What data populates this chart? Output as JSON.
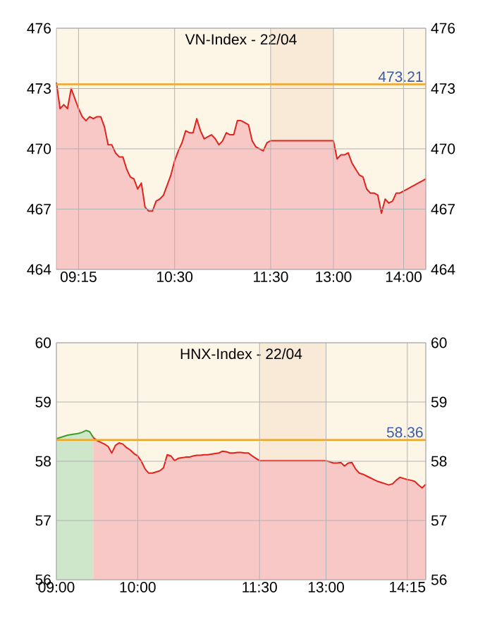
{
  "chart_data": [
    {
      "type": "area",
      "title": "VN-Index - 22/04",
      "ylim": [
        464,
        476
      ],
      "yticks": [
        464,
        467,
        470,
        473,
        476
      ],
      "y2lim": [
        464,
        476
      ],
      "y2ticks": [
        464,
        467,
        470,
        473,
        476
      ],
      "grid": true,
      "categories": [
        null,
        null,
        null,
        null,
        null,
        null,
        "09:15",
        null,
        null,
        null,
        null,
        null,
        null,
        null,
        null,
        null,
        null,
        null,
        null,
        null,
        null,
        null,
        null,
        null,
        null,
        null,
        null,
        null,
        null,
        null,
        null,
        null,
        "10:30",
        null,
        null,
        null,
        null,
        null,
        null,
        null,
        null,
        null,
        null,
        null,
        null,
        null,
        null,
        null,
        null,
        null,
        null,
        null,
        null,
        null,
        null,
        null,
        null,
        null,
        "11:30",
        null,
        null,
        null,
        null,
        null,
        null,
        null,
        null,
        null,
        null,
        null,
        null,
        null,
        null,
        null,
        null,
        "13:00",
        null,
        null,
        null,
        null,
        null,
        null,
        null,
        null,
        null,
        null,
        null,
        null,
        null,
        null,
        null,
        null,
        null,
        null,
        "14:00",
        null,
        null,
        null,
        null,
        null,
        null
      ],
      "bands": [
        {
          "axis": "x",
          "from": "11:30",
          "to": "13:00",
          "color": "#f9ead8"
        }
      ],
      "ref_lines": [
        {
          "axis": "y",
          "value": 473.21,
          "label": "473.21",
          "color": "#f3a51f"
        }
      ],
      "series": [
        {
          "color": "#e0231d",
          "values": [
            473.3,
            472.0,
            472.2,
            472.0,
            473.0,
            472.5,
            472.0,
            471.6,
            471.4,
            471.6,
            471.5,
            471.6,
            471.6,
            471.1,
            470.2,
            470.2,
            469.8,
            469.6,
            469.6,
            469.0,
            468.6,
            468.5,
            468.0,
            468.3,
            467.1,
            466.9,
            466.9,
            467.4,
            467.5,
            467.7,
            468.2,
            468.7,
            469.4,
            469.9,
            470.3,
            470.9,
            470.8,
            470.8,
            471.5,
            470.9,
            470.5,
            470.6,
            470.7,
            470.5,
            470.2,
            470.4,
            470.8,
            470.7,
            470.7,
            471.4,
            471.4,
            471.3,
            471.2,
            470.4,
            470.1,
            470.0,
            469.9,
            470.3,
            470.4,
            470.4,
            470.4,
            470.4,
            470.4,
            470.4,
            470.4,
            470.4,
            470.4,
            470.4,
            470.4,
            470.4,
            470.4,
            470.4,
            470.4,
            470.4,
            470.4,
            470.4,
            469.5,
            469.7,
            469.7,
            469.8,
            469.3,
            469.0,
            468.7,
            468.6,
            468.0,
            467.8,
            467.8,
            467.7,
            466.8,
            467.5,
            467.3,
            467.4,
            467.8,
            467.8,
            467.9,
            468.0,
            468.1,
            468.2,
            468.3,
            468.4,
            468.5
          ]
        }
      ]
    },
    {
      "type": "area",
      "title": "HNX-Index - 22/04",
      "ylim": [
        56,
        60
      ],
      "yticks": [
        56,
        57,
        58,
        59,
        60
      ],
      "y2lim": [
        56,
        60
      ],
      "y2ticks": [
        56,
        57,
        58,
        59,
        60
      ],
      "grid": true,
      "categories": [
        "09:00",
        null,
        null,
        null,
        null,
        null,
        null,
        null,
        null,
        null,
        null,
        null,
        null,
        null,
        null,
        null,
        null,
        null,
        null,
        null,
        null,
        null,
        "10:00",
        null,
        null,
        null,
        null,
        null,
        null,
        null,
        null,
        null,
        null,
        null,
        null,
        null,
        null,
        null,
        null,
        null,
        null,
        null,
        null,
        null,
        null,
        null,
        null,
        null,
        null,
        null,
        null,
        null,
        null,
        null,
        null,
        "11:30",
        null,
        null,
        null,
        null,
        null,
        null,
        null,
        null,
        null,
        null,
        null,
        null,
        null,
        null,
        null,
        null,
        null,
        "13:00",
        null,
        null,
        null,
        null,
        null,
        null,
        null,
        null,
        null,
        null,
        null,
        null,
        null,
        null,
        null,
        null,
        null,
        null,
        null,
        null,
        null,
        "14:15",
        null,
        null,
        null,
        null,
        null
      ],
      "bands": [
        {
          "axis": "x",
          "from": "11:30",
          "to": "13:00",
          "color": "#f9ead8"
        }
      ],
      "ref_lines": [
        {
          "axis": "y",
          "value": 58.36,
          "label": "58.36",
          "color": "#f3a51f"
        }
      ],
      "series": [
        {
          "color": "#3c9e2a",
          "values": [
            58.38,
            58.4,
            58.42,
            58.44,
            58.45,
            58.46,
            58.47,
            58.49,
            58.52,
            58.5,
            58.4,
            null,
            null,
            null,
            null,
            null,
            null,
            null,
            null,
            null,
            null,
            null,
            null,
            null,
            null,
            null,
            null,
            null,
            null,
            null,
            null,
            null,
            null,
            null,
            null,
            null,
            null,
            null,
            null,
            null,
            null,
            null,
            null,
            null,
            null,
            null,
            null,
            null,
            null,
            null,
            null,
            null,
            null,
            null,
            null,
            null,
            null,
            null,
            null,
            null,
            null,
            null,
            null,
            null,
            null,
            null,
            null,
            null,
            null,
            null,
            null,
            null,
            null,
            null,
            null,
            null,
            null,
            null,
            null,
            null,
            null,
            null,
            null,
            null,
            null,
            null,
            null,
            null,
            null,
            null,
            null,
            null,
            null,
            null,
            null,
            null,
            null,
            null,
            null,
            null,
            null
          ]
        },
        {
          "color": "#e0231d",
          "values": [
            null,
            null,
            null,
            null,
            null,
            null,
            null,
            null,
            null,
            null,
            58.4,
            58.35,
            58.32,
            58.29,
            58.25,
            58.14,
            58.27,
            58.31,
            58.29,
            58.23,
            58.19,
            58.13,
            58.09,
            58.0,
            57.87,
            57.8,
            57.8,
            57.82,
            57.84,
            57.89,
            58.11,
            58.09,
            58.01,
            58.05,
            58.06,
            58.07,
            58.07,
            58.09,
            58.1,
            58.1,
            58.11,
            58.11,
            58.12,
            58.13,
            58.14,
            58.17,
            58.16,
            58.14,
            58.14,
            58.15,
            58.15,
            58.14,
            58.14,
            58.09,
            58.05,
            58.01,
            58.01,
            58.01,
            58.01,
            58.01,
            58.01,
            58.01,
            58.01,
            58.01,
            58.01,
            58.01,
            58.01,
            58.01,
            58.01,
            58.01,
            58.01,
            58.01,
            58.01,
            58.01,
            57.99,
            57.97,
            57.97,
            57.98,
            57.92,
            57.97,
            57.98,
            57.87,
            57.8,
            57.78,
            57.75,
            57.72,
            57.69,
            57.66,
            57.64,
            57.62,
            57.6,
            57.62,
            57.68,
            57.73,
            57.71,
            57.69,
            57.68,
            57.66,
            57.6,
            57.55,
            57.61
          ]
        }
      ]
    }
  ]
}
